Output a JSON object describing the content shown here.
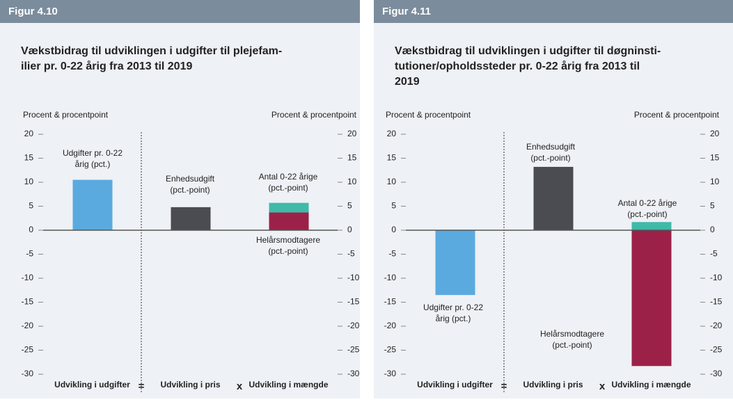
{
  "chart_data": [
    {
      "type": "bar",
      "figure": "Figur 4.10",
      "title": [
        "Vækstbidrag til udviklingen i udgifter til plejefam-",
        "ilier pr. 0-22 årig fra 2013 til 2019"
      ],
      "y_axis_label": "Procent & procentpoint",
      "categories": [
        "Udvikling i udgifter",
        "Udvikling i pris",
        "Udvikling i mængde"
      ],
      "operators": [
        "=",
        "x"
      ],
      "series": [
        {
          "name": [
            "Udgifter pr. 0-22",
            "årig (pct.)"
          ],
          "color": "#5aaadf",
          "values": [
            10.5,
            null,
            null
          ]
        },
        {
          "name": [
            "Enhedsudgift",
            "(pct.-point)"
          ],
          "color": "#4a4c52",
          "values": [
            null,
            4.8,
            null
          ]
        },
        {
          "name": [
            "Helårsmodtagere",
            "(pct.-point)"
          ],
          "color": "#9c2148",
          "values": [
            null,
            null,
            3.7
          ]
        },
        {
          "name": [
            "Antal 0-22 årige",
            "(pct.-point)"
          ],
          "color": "#3fbaa9",
          "values": [
            null,
            null,
            2.0
          ]
        }
      ],
      "ylim": [
        -30,
        20
      ],
      "yticks": [
        -30,
        -25,
        -20,
        -15,
        -10,
        -5,
        0,
        5,
        10,
        15,
        20
      ],
      "stacked": true
    },
    {
      "type": "bar",
      "figure": "Figur 4.11",
      "title": [
        "Vækstbidrag til udviklingen i udgifter til døgninsti-",
        "tutioner/opholdssteder pr. 0-22 årig fra 2013 til",
        "2019"
      ],
      "y_axis_label": "Procent & procentpoint",
      "categories": [
        "Udvikling i udgifter",
        "Udvikling i pris",
        "Udvikling i mængde"
      ],
      "operators": [
        "=",
        "x"
      ],
      "series": [
        {
          "name": [
            "Udgifter pr. 0-22",
            "årig (pct.)"
          ],
          "color": "#5aaadf",
          "values": [
            -13.5,
            null,
            null
          ]
        },
        {
          "name": [
            "Enhedsudgift",
            "(pct.-point)"
          ],
          "color": "#4a4c52",
          "values": [
            null,
            13.2,
            null
          ]
        },
        {
          "name": [
            "Helårsmodtagere",
            "(pct.-point)"
          ],
          "color": "#9c2148",
          "values": [
            null,
            null,
            -28.3
          ]
        },
        {
          "name": [
            "Antal 0-22 årige",
            "(pct.-point)"
          ],
          "color": "#3fbaa9",
          "values": [
            null,
            null,
            1.7
          ]
        }
      ],
      "ylim": [
        -30,
        20
      ],
      "yticks": [
        -30,
        -25,
        -20,
        -15,
        -10,
        -5,
        0,
        5,
        10,
        15,
        20
      ],
      "stacked": true
    }
  ]
}
